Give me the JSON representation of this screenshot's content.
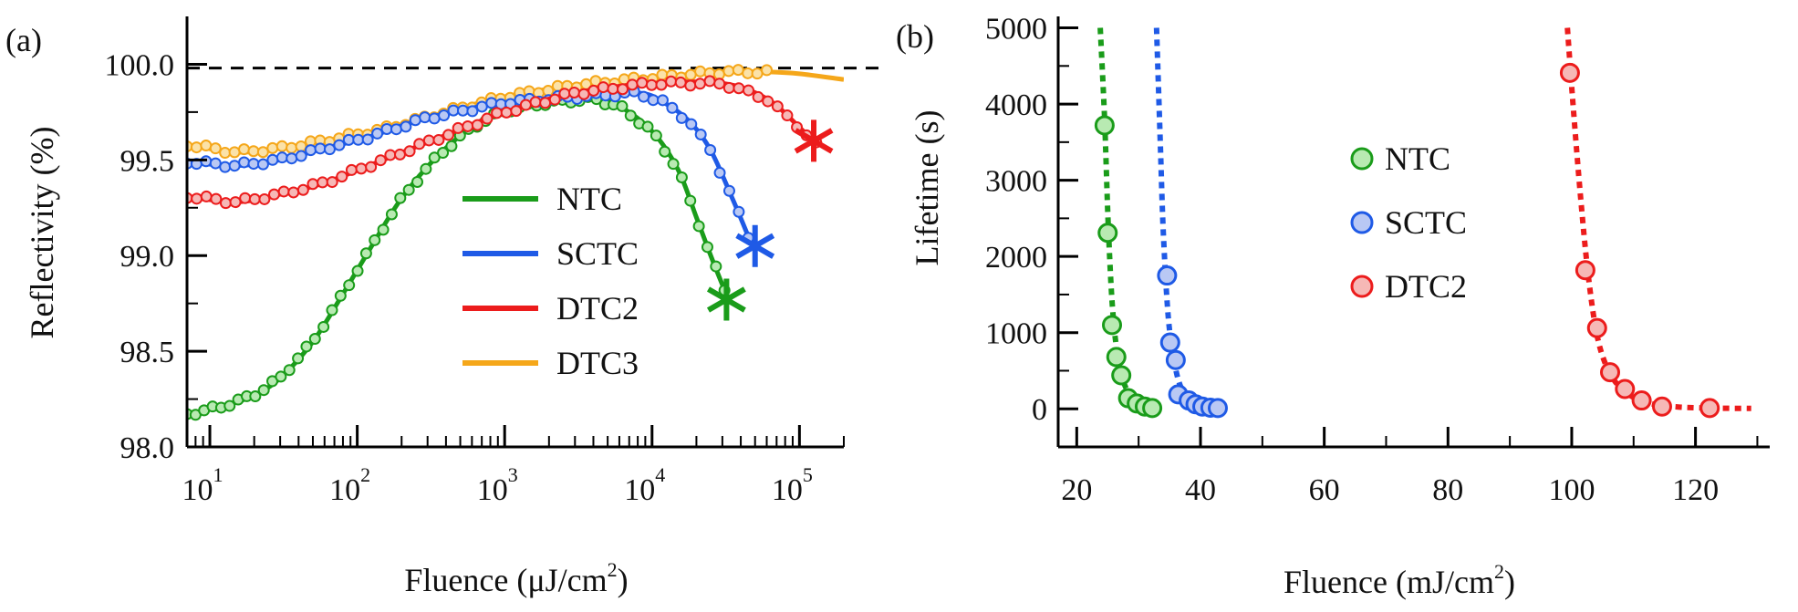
{
  "colors": {
    "NTC": "#1a9c1a",
    "SCTC": "#1f5ae6",
    "DTC2": "#ec1c1c",
    "DTC3": "#f5a71a",
    "NTC_fill": "#b8eab2",
    "SCTC_fill": "#b9c8f4",
    "DTC2_fill": "#f6b8b6",
    "DTC3_fill": "#fbe2a8",
    "axis": "#000000"
  },
  "chart_data": [
    {
      "panel_label": "(a)",
      "type": "line",
      "xscale": "log",
      "xlabel": "Fluence (μJ/cm",
      "xlabel_sup": "2",
      "xlabel_tail": ")",
      "ylabel": "Reflectivity (%)",
      "xlim": [
        7,
        200000
      ],
      "ylim": [
        98.0,
        100.25
      ],
      "yticks": [
        "98.0",
        "98.5",
        "99.0",
        "99.5",
        "100.0"
      ],
      "xticks": [
        {
          "base": "10",
          "exp": "1",
          "value": 10
        },
        {
          "base": "10",
          "exp": "2",
          "value": 100
        },
        {
          "base": "10",
          "exp": "3",
          "value": 1000
        },
        {
          "base": "10",
          "exp": "4",
          "value": 10000
        },
        {
          "base": "10",
          "exp": "5",
          "value": 100000
        }
      ],
      "reference_line": 99.98,
      "legend": [
        "NTC",
        "SCTC",
        "DTC2",
        "DTC3"
      ],
      "series": [
        {
          "name": "NTC",
          "markers": "open-circle",
          "fit": [
            [
              7,
              98.17
            ],
            [
              12,
              98.21
            ],
            [
              20,
              98.27
            ],
            [
              30,
              98.36
            ],
            [
              50,
              98.55
            ],
            [
              80,
              98.8
            ],
            [
              130,
              99.07
            ],
            [
              200,
              99.3
            ],
            [
              350,
              99.52
            ],
            [
              600,
              99.67
            ],
            [
              1000,
              99.76
            ],
            [
              2000,
              99.8
            ],
            [
              4000,
              99.82
            ],
            [
              6000,
              99.78
            ],
            [
              10000,
              99.65
            ],
            [
              15000,
              99.45
            ],
            [
              20000,
              99.2
            ],
            [
              25000,
              99.0
            ],
            [
              31000,
              98.82
            ]
          ],
          "break_point": [
            32000,
            98.77
          ]
        },
        {
          "name": "SCTC",
          "markers": "open-circle",
          "fit": [
            [
              7,
              99.49
            ],
            [
              15,
              99.47
            ],
            [
              30,
              99.5
            ],
            [
              60,
              99.56
            ],
            [
              120,
              99.62
            ],
            [
              300,
              99.72
            ],
            [
              1000,
              99.8
            ],
            [
              3000,
              99.83
            ],
            [
              8000,
              99.85
            ],
            [
              12000,
              99.8
            ],
            [
              18000,
              99.7
            ],
            [
              25000,
              99.55
            ],
            [
              35000,
              99.3
            ],
            [
              45000,
              99.1
            ]
          ],
          "break_point": [
            50000,
            99.05
          ]
        },
        {
          "name": "DTC2",
          "markers": "open-circle",
          "fit": [
            [
              7,
              99.31
            ],
            [
              15,
              99.28
            ],
            [
              30,
              99.32
            ],
            [
              60,
              99.38
            ],
            [
              150,
              99.5
            ],
            [
              400,
              99.63
            ],
            [
              1000,
              99.75
            ],
            [
              3000,
              99.85
            ],
            [
              10000,
              99.9
            ],
            [
              30000,
              99.9
            ],
            [
              60000,
              99.82
            ],
            [
              100000,
              99.67
            ],
            [
              130000,
              99.58
            ]
          ],
          "break_point": [
            125000,
            99.6
          ]
        },
        {
          "name": "DTC3",
          "markers": "open-circle",
          "fit": [
            [
              7,
              99.58
            ],
            [
              15,
              99.54
            ],
            [
              30,
              99.56
            ],
            [
              60,
              99.6
            ],
            [
              150,
              99.66
            ],
            [
              400,
              99.75
            ],
            [
              1000,
              99.83
            ],
            [
              3000,
              99.89
            ],
            [
              10000,
              99.93
            ],
            [
              30000,
              99.96
            ],
            [
              60000,
              99.96
            ],
            [
              100000,
              99.95
            ],
            [
              200000,
              99.92
            ]
          ]
        }
      ]
    },
    {
      "panel_label": "(b)",
      "type": "scatter",
      "xlabel": "Fluence (mJ/cm",
      "xlabel_sup": "2",
      "xlabel_tail": ")",
      "ylabel": "Lifetime (s)",
      "xlim": [
        17,
        132
      ],
      "ylim": [
        -500,
        5150
      ],
      "yticks": [
        "0",
        "1000",
        "2000",
        "3000",
        "4000",
        "5000"
      ],
      "xticks": [
        "20",
        "40",
        "60",
        "80",
        "100",
        "120"
      ],
      "legend": [
        "NTC",
        "SCTC",
        "DTC2"
      ],
      "series": [
        {
          "name": "NTC",
          "points": [
            [
              24.5,
              3720
            ],
            [
              25,
              2310
            ],
            [
              25.7,
              1100
            ],
            [
              26.4,
              680
            ],
            [
              27.2,
              440
            ],
            [
              28.3,
              140
            ],
            [
              29.7,
              70
            ],
            [
              31,
              30
            ],
            [
              32.2,
              10
            ]
          ],
          "fit": [
            [
              23.8,
              5000
            ],
            [
              24.5,
              3800
            ],
            [
              25.1,
              2400
            ],
            [
              25.8,
              1300
            ],
            [
              26.8,
              600
            ],
            [
              28.2,
              230
            ],
            [
              30,
              70
            ],
            [
              32.5,
              10
            ],
            [
              33,
              5
            ]
          ]
        },
        {
          "name": "SCTC",
          "points": [
            [
              34.6,
              1750
            ],
            [
              35.1,
              870
            ],
            [
              36,
              640
            ],
            [
              36.4,
              190
            ],
            [
              38.1,
              110
            ],
            [
              39.2,
              60
            ],
            [
              40.3,
              30
            ],
            [
              41.6,
              15
            ],
            [
              42.8,
              10
            ]
          ],
          "fit": [
            [
              32.9,
              5000
            ],
            [
              33.5,
              3500
            ],
            [
              34,
              2300
            ],
            [
              34.8,
              1200
            ],
            [
              35.8,
              600
            ],
            [
              37,
              250
            ],
            [
              38.8,
              90
            ],
            [
              41,
              25
            ],
            [
              43,
              10
            ]
          ]
        },
        {
          "name": "DTC2",
          "points": [
            [
              99.7,
              4410
            ],
            [
              102.2,
              1820
            ],
            [
              104.1,
              1060
            ],
            [
              106.2,
              480
            ],
            [
              108.6,
              260
            ],
            [
              111.3,
              110
            ],
            [
              114.6,
              30
            ],
            [
              122.3,
              10
            ]
          ],
          "fit": [
            [
              99.3,
              5000
            ],
            [
              100.3,
              3900
            ],
            [
              101.4,
              2800
            ],
            [
              102.6,
              1800
            ],
            [
              104,
              1000
            ],
            [
              105.6,
              560
            ],
            [
              107.6,
              300
            ],
            [
              110,
              150
            ],
            [
              113,
              65
            ],
            [
              117,
              25
            ],
            [
              122,
              10
            ],
            [
              129,
              5
            ]
          ]
        }
      ]
    }
  ]
}
